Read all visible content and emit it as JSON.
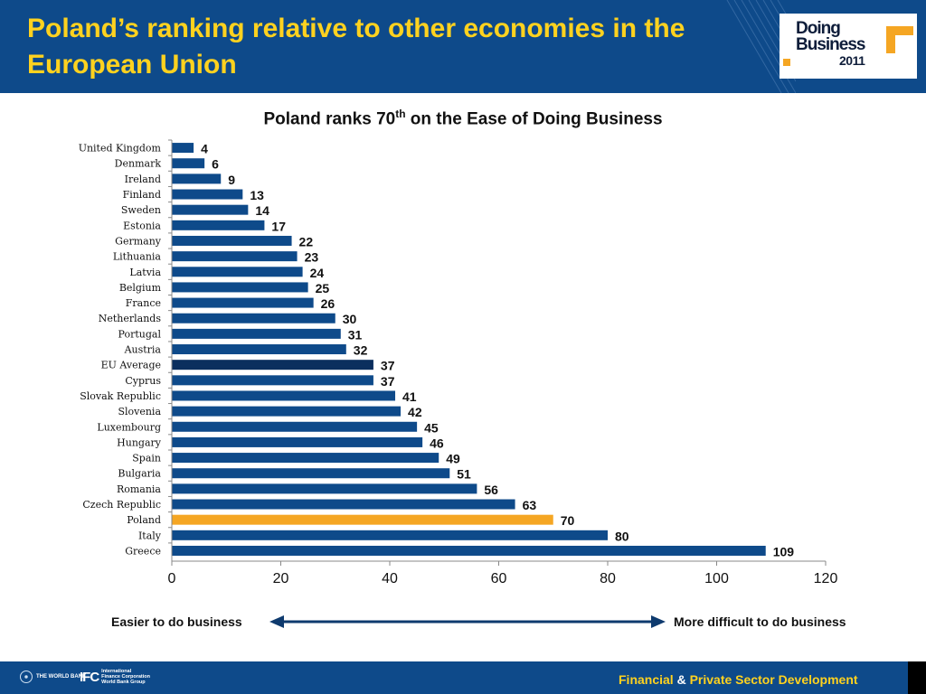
{
  "header": {
    "title": "Poland’s ranking relative to other economies in the European Union",
    "logo_line1": "Doing",
    "logo_line2": "Business",
    "logo_year": "2011"
  },
  "chart_title": {
    "before": "Poland ranks 70",
    "sup": "th",
    "after": " on the Ease of Doing Business"
  },
  "chart_data": {
    "type": "bar",
    "orientation": "horizontal",
    "categories": [
      "United Kingdom",
      "Denmark",
      "Ireland",
      "Finland",
      "Sweden",
      "Estonia",
      "Germany",
      "Lithuania",
      "Latvia",
      "Belgium",
      "France",
      "Netherlands",
      "Portugal",
      "Austria",
      "EU Average",
      "Cyprus",
      "Slovak Republic",
      "Slovenia",
      "Luxembourg",
      "Hungary",
      "Spain",
      "Bulgaria",
      "Romania",
      "Czech Republic",
      "Poland",
      "Italy",
      "Greece"
    ],
    "values": [
      4,
      6,
      9,
      13,
      14,
      17,
      22,
      23,
      24,
      25,
      26,
      30,
      31,
      32,
      37,
      37,
      41,
      42,
      45,
      46,
      49,
      51,
      56,
      63,
      70,
      80,
      109
    ],
    "xlim": [
      0,
      120
    ],
    "xticks": [
      0,
      20,
      40,
      60,
      80,
      100,
      120
    ],
    "data_labels": true,
    "grid": false,
    "highlight": {
      "Poland": "#f5a623",
      "EU Average": "#0b2f5e"
    },
    "bar_color": "#0e4a8a"
  },
  "scale": {
    "left_label": "Easier to do business",
    "right_label": "More difficult to do business"
  },
  "footer": {
    "world_bank": "THE WORLD BANK",
    "ifc_mark": "IFC",
    "ifc_line1": "International",
    "ifc_line2": "Finance Corporation",
    "ifc_line3": "World Bank Group",
    "right_part1": "Financial",
    "right_amp": "&",
    "right_part2": "Private Sector Development"
  }
}
